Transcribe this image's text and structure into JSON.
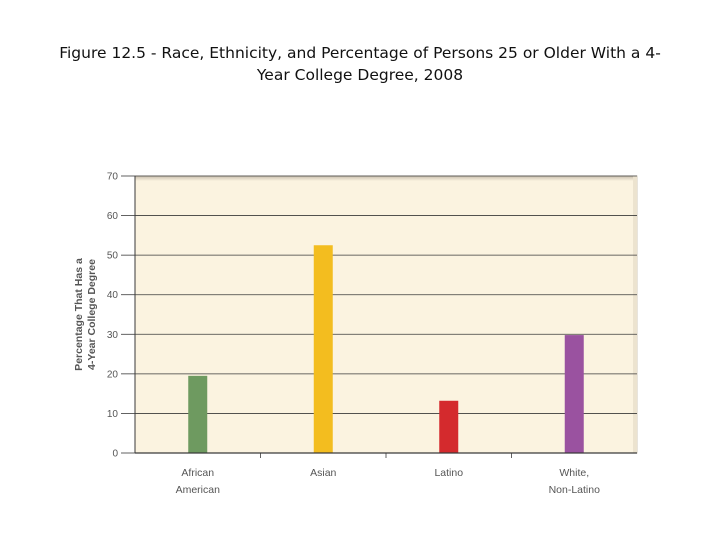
{
  "slide": {
    "title_line1": "Figure 12.5 - Race, Ethnicity, and Percentage of Persons 25 or Older With a 4-",
    "title_line2": "Year College Degree, 2008"
  },
  "chart_data": {
    "type": "bar",
    "title": "Figure 12.5 - Race, Ethnicity, and Percentage of Persons 25 or Older With a 4-Year College Degree, 2008",
    "categories": [
      [
        "African",
        "American"
      ],
      [
        "Asian"
      ],
      [
        "Latino"
      ],
      [
        "White,",
        "Non-Latino"
      ]
    ],
    "values": [
      19.5,
      52.5,
      13.2,
      29.8
    ],
    "colors": [
      "#6e9a60",
      "#f3bd1f",
      "#d42a2d",
      "#9a52a0"
    ],
    "ylabel_line1": "Percentage That Has a",
    "ylabel_line2": "4-Year College Degree",
    "ylim": [
      0,
      70
    ],
    "yticks": [
      0,
      10,
      20,
      30,
      40,
      50,
      60,
      70
    ],
    "grid": true,
    "plot_background": "#fbf3e0"
  }
}
